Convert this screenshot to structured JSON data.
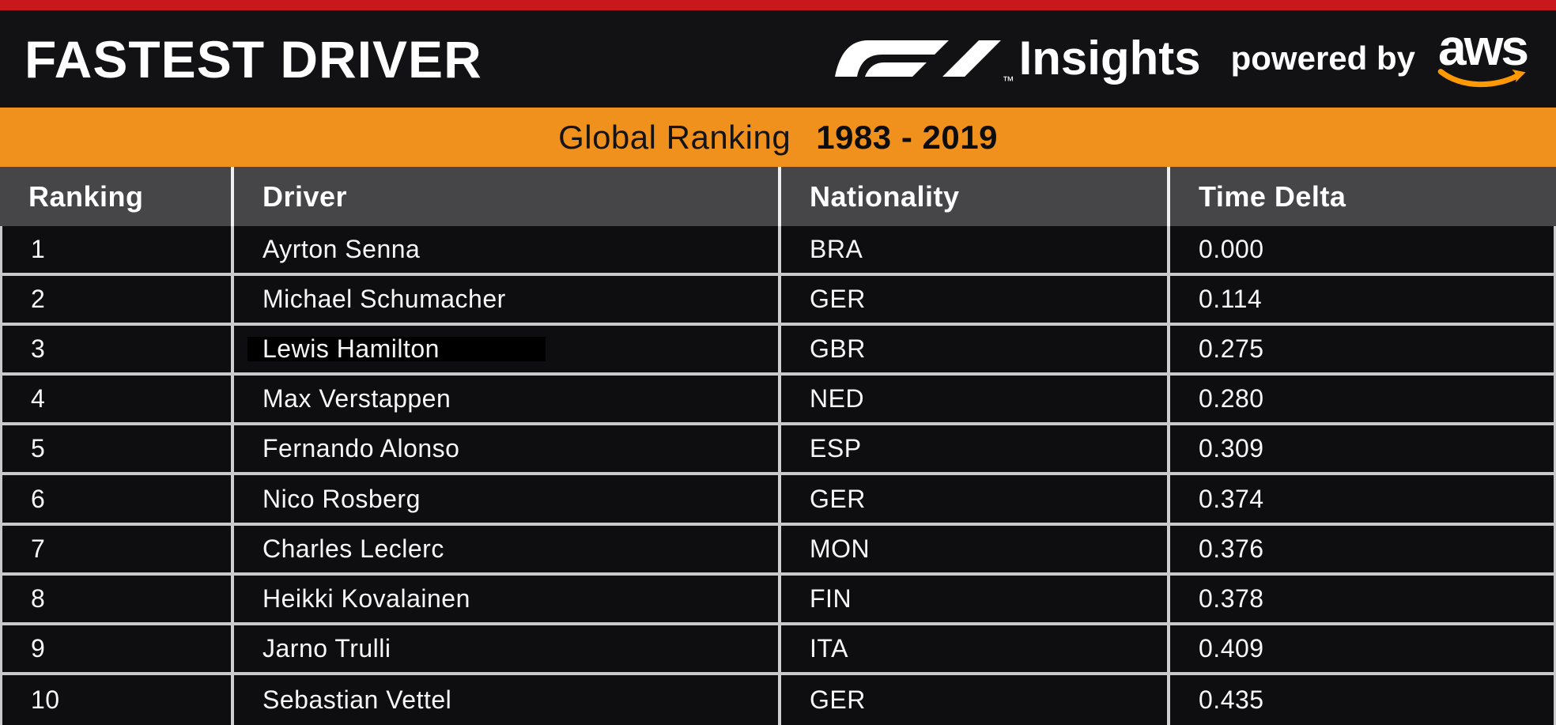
{
  "masthead": {
    "title": "FASTEST DRIVER",
    "brand": {
      "f1_logo": "F1",
      "trademark": "™",
      "product": "Insights",
      "powered_by": "powered by",
      "cloud_provider": "aws"
    }
  },
  "banner": {
    "label": "Global Ranking",
    "season_range": "1983 - 2019"
  },
  "table": {
    "columns": [
      "Ranking",
      "Driver",
      "Nationality",
      "Time Delta"
    ],
    "rows": [
      {
        "ranking": "1",
        "driver": "Ayrton Senna",
        "nationality": "BRA",
        "time_delta": "0.000",
        "redacted": false
      },
      {
        "ranking": "2",
        "driver": "Michael Schumacher",
        "nationality": "GER",
        "time_delta": "0.114",
        "redacted": false
      },
      {
        "ranking": "3",
        "driver": "Lewis Hamilton",
        "nationality": "GBR",
        "time_delta": "0.275",
        "redacted": true
      },
      {
        "ranking": "4",
        "driver": "Max Verstappen",
        "nationality": "NED",
        "time_delta": "0.280",
        "redacted": false
      },
      {
        "ranking": "5",
        "driver": "Fernando Alonso",
        "nationality": "ESP",
        "time_delta": "0.309",
        "redacted": false
      },
      {
        "ranking": "6",
        "driver": "Nico Rosberg",
        "nationality": "GER",
        "time_delta": "0.374",
        "redacted": false
      },
      {
        "ranking": "7",
        "driver": "Charles Leclerc",
        "nationality": "MON",
        "time_delta": "0.376",
        "redacted": false
      },
      {
        "ranking": "8",
        "driver": "Heikki Kovalainen",
        "nationality": "FIN",
        "time_delta": "0.378",
        "redacted": false
      },
      {
        "ranking": "9",
        "driver": "Jarno Trulli",
        "nationality": "ITA",
        "time_delta": "0.409",
        "redacted": false
      },
      {
        "ranking": "10",
        "driver": "Sebastian Vettel",
        "nationality": "GER",
        "time_delta": "0.435",
        "redacted": false
      }
    ]
  },
  "colors": {
    "stripe_red": "#c9181b",
    "header_black": "#121214",
    "banner_orange": "#f0911e",
    "table_header_gray": "#464649",
    "row_black": "#0e0e10",
    "divider_light": "#c9c9c9",
    "aws_orange": "#ff9900"
  },
  "chart_data": {
    "type": "table",
    "title": "Fastest Driver — Global Ranking 1983 - 2019",
    "columns": [
      "Ranking",
      "Driver",
      "Nationality",
      "Time Delta"
    ],
    "rows": [
      [
        1,
        "Ayrton Senna",
        "BRA",
        0.0
      ],
      [
        2,
        "Michael Schumacher",
        "GER",
        0.114
      ],
      [
        3,
        "Lewis Hamilton",
        "GBR",
        0.275
      ],
      [
        4,
        "Max Verstappen",
        "NED",
        0.28
      ],
      [
        5,
        "Fernando Alonso",
        "ESP",
        0.309
      ],
      [
        6,
        "Nico Rosberg",
        "GER",
        0.374
      ],
      [
        7,
        "Charles Leclerc",
        "MON",
        0.376
      ],
      [
        8,
        "Heikki Kovalainen",
        "FIN",
        0.378
      ],
      [
        9,
        "Jarno Trulli",
        "ITA",
        0.409
      ],
      [
        10,
        "Sebastian Vettel",
        "GER",
        0.435
      ]
    ]
  }
}
